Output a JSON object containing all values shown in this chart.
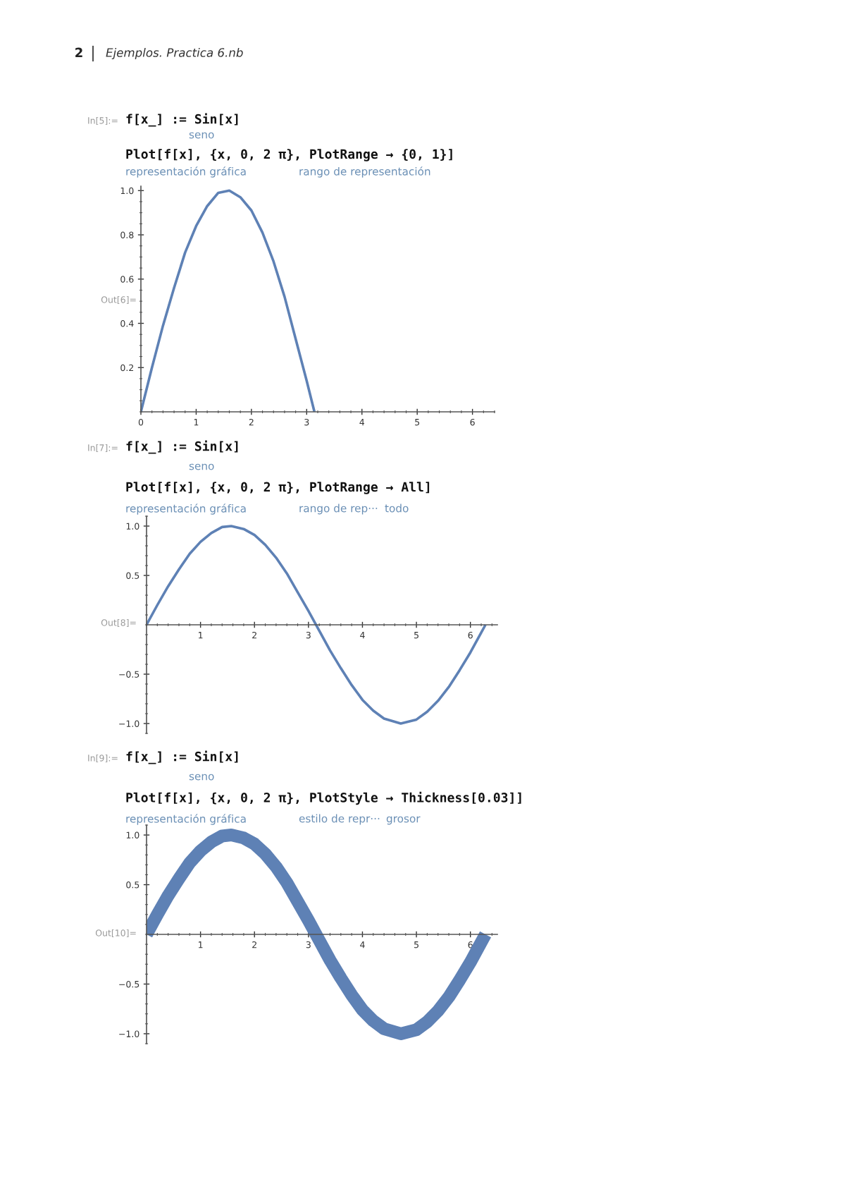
{
  "chart_data": [
    {
      "type": "line",
      "color": "#5e81b5",
      "x": [
        0,
        0.2,
        0.4,
        0.6,
        0.8,
        1.0,
        1.2,
        1.4,
        1.6,
        1.8,
        2.0,
        2.2,
        2.4,
        2.6,
        2.8,
        3.0,
        3.14
      ],
      "values": [
        0,
        0.2,
        0.39,
        0.56,
        0.72,
        0.84,
        0.93,
        0.99,
        1.0,
        0.97,
        0.91,
        0.81,
        0.68,
        0.52,
        0.33,
        0.14,
        0
      ],
      "xlim": [
        0,
        6.4
      ],
      "ylim": [
        0,
        1.02
      ],
      "xticks": [
        0,
        1,
        2,
        3,
        4,
        5,
        6
      ],
      "yticks": [
        0.2,
        0.4,
        0.6,
        0.8,
        {
          "value": 1,
          "label": "1.0"
        }
      ],
      "annotations": [
        "2",
        "Ejemplos. Practica 6.nb",
        "In[5]:=",
        "f[x_] := Sin[x]",
        "seno",
        "Plot[f[x], {x, 0, 2 π}, PlotRange → {0, 1}]",
        "representación gráfica",
        "rango de representación",
        "Out[6]="
      ]
    },
    {
      "type": "line",
      "color": "#5e81b5",
      "x": [
        0,
        0.2,
        0.4,
        0.6,
        0.8,
        1.0,
        1.2,
        1.4,
        1.57,
        1.8,
        2.0,
        2.2,
        2.4,
        2.6,
        2.8,
        3.0,
        3.2,
        3.4,
        3.6,
        3.8,
        4.0,
        4.2,
        4.4,
        4.71,
        5.0,
        5.2,
        5.4,
        5.6,
        5.8,
        6.0,
        6.2,
        6.28
      ],
      "values": [
        0,
        0.2,
        0.39,
        0.56,
        0.72,
        0.84,
        0.93,
        0.99,
        1.0,
        0.97,
        0.91,
        0.81,
        0.68,
        0.52,
        0.33,
        0.14,
        -0.06,
        -0.26,
        -0.44,
        -0.61,
        -0.76,
        -0.87,
        -0.95,
        -1.0,
        -0.96,
        -0.88,
        -0.77,
        -0.63,
        -0.46,
        -0.28,
        -0.08,
        0
      ],
      "xlim": [
        0,
        6.5
      ],
      "ylim": [
        -1.1,
        1.1
      ],
      "xticks": [
        1,
        2,
        3,
        4,
        5,
        6
      ],
      "yticks": [
        {
          "value": -1,
          "label": "−1.0"
        },
        {
          "value": -0.5,
          "label": "−0.5"
        },
        0.5,
        {
          "value": 1,
          "label": "1.0"
        }
      ],
      "annotations": [
        "In[7]:=",
        "f[x_] := Sin[x]",
        "seno",
        "Plot[f[x], {x, 0, 2 π}, PlotRange → All]",
        "representación gráfica",
        "rango de rep···",
        "todo",
        "Out[8]="
      ]
    },
    {
      "type": "line",
      "color": "#5e81b5",
      "x": [
        0,
        0.2,
        0.4,
        0.6,
        0.8,
        1.0,
        1.2,
        1.4,
        1.57,
        1.8,
        2.0,
        2.2,
        2.4,
        2.6,
        2.8,
        3.0,
        3.2,
        3.4,
        3.6,
        3.8,
        4.0,
        4.2,
        4.4,
        4.71,
        5.0,
        5.2,
        5.4,
        5.6,
        5.8,
        6.0,
        6.2,
        6.28
      ],
      "values": [
        0,
        0.2,
        0.39,
        0.56,
        0.72,
        0.84,
        0.93,
        0.99,
        1.0,
        0.97,
        0.91,
        0.81,
        0.68,
        0.52,
        0.33,
        0.14,
        -0.06,
        -0.26,
        -0.44,
        -0.61,
        -0.76,
        -0.87,
        -0.95,
        -1.0,
        -0.96,
        -0.88,
        -0.77,
        -0.63,
        -0.46,
        -0.28,
        -0.08,
        0
      ],
      "xlim": [
        0,
        6.5
      ],
      "ylim": [
        -1.1,
        1.1
      ],
      "xticks": [
        1,
        2,
        3,
        4,
        5,
        6
      ],
      "yticks": [
        {
          "value": -1,
          "label": "−1.0"
        },
        {
          "value": -0.5,
          "label": "−0.5"
        },
        0.5,
        {
          "value": 1,
          "label": "1.0"
        }
      ],
      "annotations": [
        "In[9]:=",
        "f[x_] := Sin[x]",
        "seno",
        "Plot[f[x], {x, 0, 2 π}, PlotStyle → Thickness[0.03]]",
        "representación gráfica",
        "estilo de repr···",
        "grosor",
        "Out[10]="
      ]
    }
  ]
}
